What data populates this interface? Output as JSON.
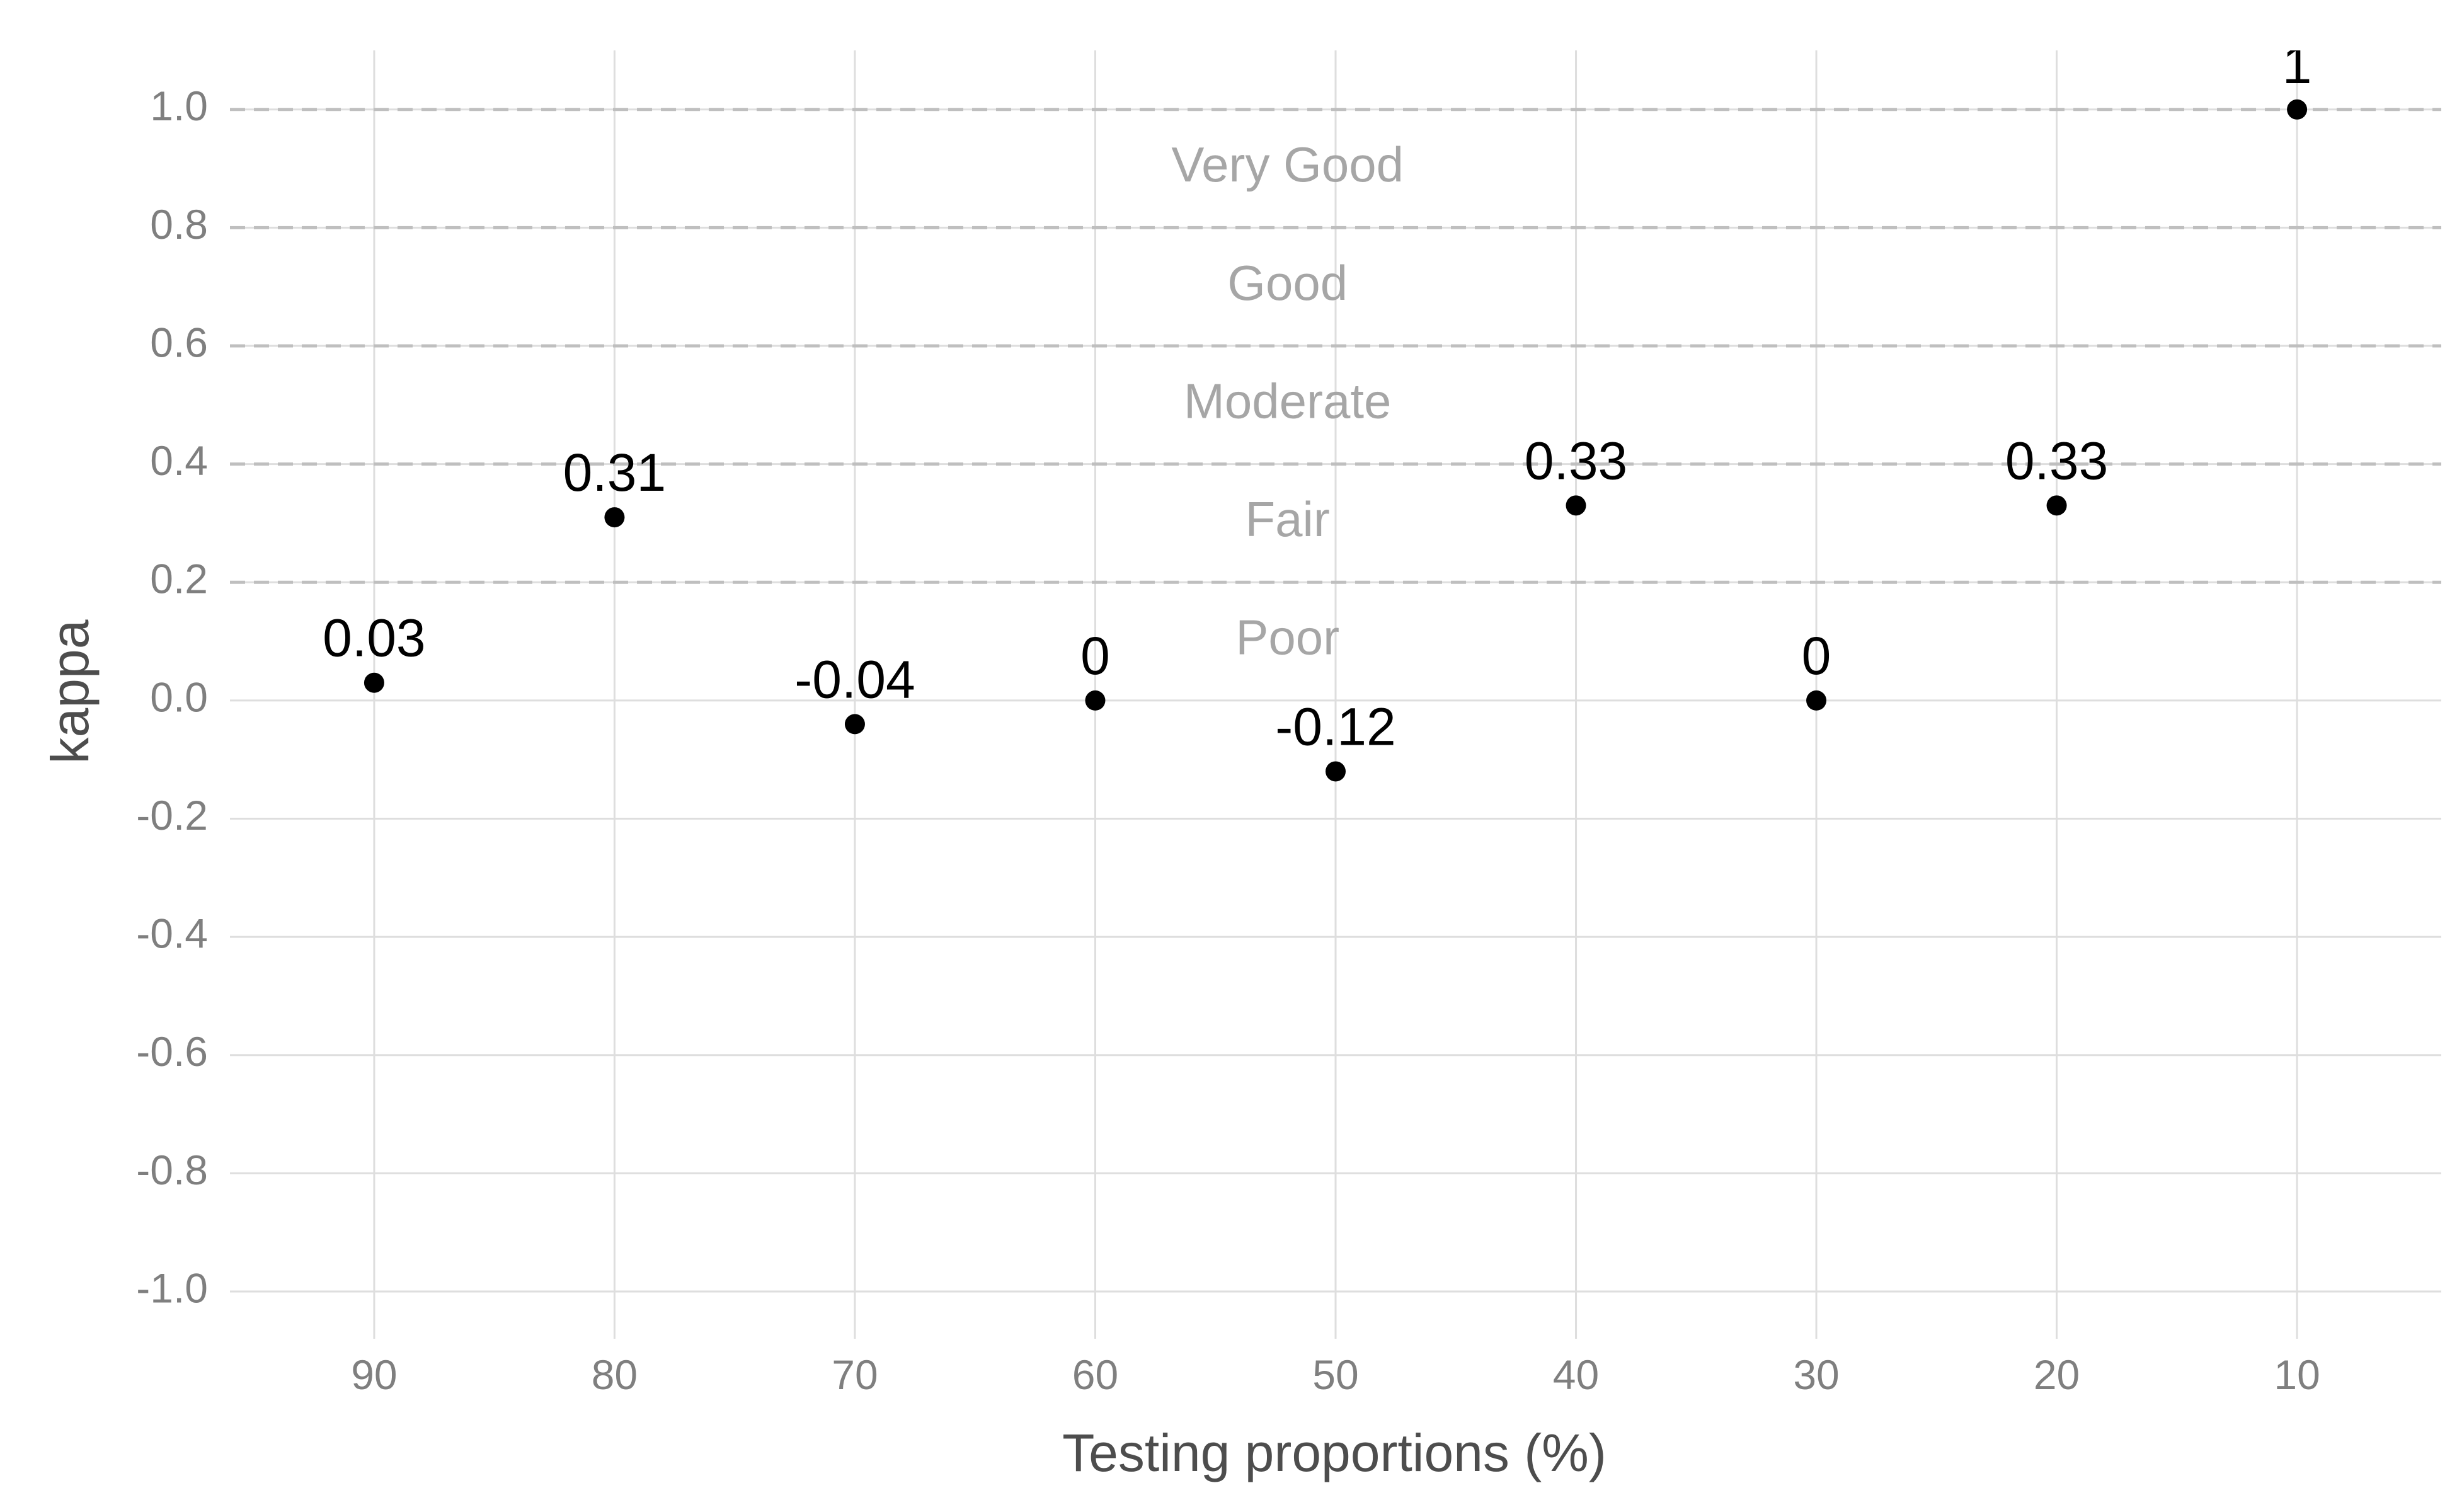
{
  "chart_data": {
    "type": "scatter",
    "title": "",
    "xlabel": "Testing proportions (%)",
    "ylabel": "kappa",
    "x_reversed": true,
    "xlim": [
      96,
      4
    ],
    "ylim": [
      -1.08,
      1.1
    ],
    "grid": true,
    "x_ticks": [
      "90",
      "80",
      "70",
      "60",
      "50",
      "40",
      "30",
      "20",
      "10"
    ],
    "y_ticks": [
      "1.0",
      "0.8",
      "0.6",
      "0.4",
      "0.2",
      "0.0",
      "-0.2",
      "-0.4",
      "-0.6",
      "-0.8",
      "-1.0"
    ],
    "points": [
      {
        "x": 90,
        "y": 0.03,
        "label": "0.03"
      },
      {
        "x": 80,
        "y": 0.31,
        "label": "0.31"
      },
      {
        "x": 70,
        "y": -0.04,
        "label": "-0.04"
      },
      {
        "x": 60,
        "y": 0.0,
        "label": "0"
      },
      {
        "x": 50,
        "y": -0.12,
        "label": "-0.12"
      },
      {
        "x": 40,
        "y": 0.33,
        "label": "0.33"
      },
      {
        "x": 30,
        "y": 0.0,
        "label": "0"
      },
      {
        "x": 20,
        "y": 0.33,
        "label": "0.33"
      },
      {
        "x": 10,
        "y": 1.0,
        "label": "1"
      }
    ],
    "thresholds": [
      1.0,
      0.8,
      0.6,
      0.4,
      0.2
    ],
    "bands": [
      {
        "label": "Very Good",
        "y": 0.9
      },
      {
        "label": "Good",
        "y": 0.7
      },
      {
        "label": "Moderate",
        "y": 0.5
      },
      {
        "label": "Fair",
        "y": 0.3
      },
      {
        "label": "Poor",
        "y": 0.1
      }
    ],
    "band_label_x": 52,
    "colors": {
      "points": "#000000",
      "threshold": "#bfbfbf",
      "grid": "#dedede",
      "band_text": "#a6a6a6"
    }
  }
}
